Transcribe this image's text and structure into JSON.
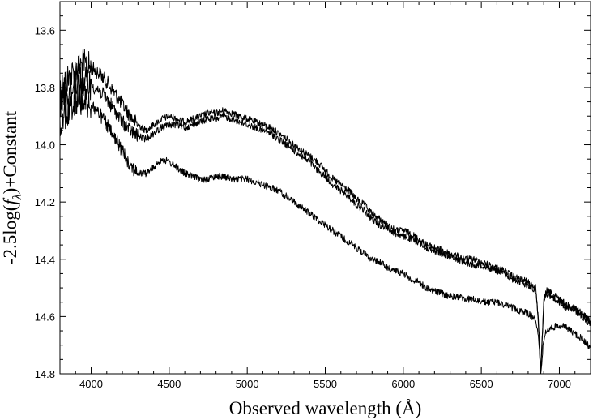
{
  "chart_data": {
    "type": "line",
    "title": "",
    "xlabel": "Observed wavelength (Å)",
    "ylabel": "-2.5log(fλ)+Constant",
    "ylabel_parts": {
      "prefix": "-2.5log(",
      "f": "f",
      "sub": "λ",
      "suffix": ")+Constant"
    },
    "xlim": [
      3800,
      7200
    ],
    "ylim": [
      14.8,
      13.5
    ],
    "y_inverted": true,
    "grid": false,
    "legend": "none",
    "line_color": "#000000",
    "x_ticks": [
      4000,
      4500,
      5000,
      5500,
      6000,
      6500,
      7000
    ],
    "x_tick_labels": [
      "4000",
      "4500",
      "5000",
      "5500",
      "6000",
      "6500",
      "7000"
    ],
    "y_ticks": [
      13.6,
      13.8,
      14.0,
      14.2,
      14.4,
      14.6,
      14.8
    ],
    "y_tick_labels": [
      "13.6",
      "13.8",
      "14.0",
      "14.2",
      "14.4",
      "14.6",
      "14.8"
    ],
    "series": [
      {
        "x": [
          3800,
          3850,
          3900,
          3950,
          4000,
          4050,
          4100,
          4150,
          4200,
          4250,
          4300,
          4350,
          4400,
          4450,
          4500,
          4550,
          4600,
          4650,
          4700,
          4750,
          4800,
          4850,
          4900,
          4950,
          5000,
          5050,
          5100,
          5150,
          5200,
          5250,
          5300,
          5350,
          5400,
          5450,
          5500,
          5550,
          5600,
          5650,
          5700,
          5750,
          5800,
          5850,
          5900,
          5950,
          6000,
          6050,
          6100,
          6150,
          6200,
          6250,
          6300,
          6350,
          6400,
          6450,
          6500,
          6550,
          6600,
          6650,
          6700,
          6750,
          6800,
          6850,
          6870,
          6880,
          6890,
          6900,
          6910,
          6920,
          6950,
          7000,
          7050,
          7100,
          7150,
          7200
        ],
        "y": [
          13.8,
          13.77,
          13.74,
          13.72,
          13.73,
          13.75,
          13.78,
          13.82,
          13.86,
          13.9,
          13.93,
          13.95,
          13.93,
          13.91,
          13.9,
          13.91,
          13.92,
          13.91,
          13.9,
          13.89,
          13.89,
          13.88,
          13.89,
          13.9,
          13.91,
          13.92,
          13.93,
          13.94,
          13.96,
          13.98,
          14.0,
          14.02,
          14.04,
          14.06,
          14.09,
          14.12,
          14.14,
          14.16,
          14.19,
          14.21,
          14.24,
          14.26,
          14.28,
          14.3,
          14.3,
          14.31,
          14.33,
          14.35,
          14.36,
          14.37,
          14.38,
          14.39,
          14.4,
          14.4,
          14.41,
          14.42,
          14.43,
          14.44,
          14.46,
          14.47,
          14.48,
          14.5,
          14.65,
          14.8,
          14.68,
          14.55,
          14.52,
          14.51,
          14.52,
          14.54,
          14.56,
          14.57,
          14.59,
          14.62
        ]
      },
      {
        "x": [
          3800,
          3850,
          3900,
          3950,
          4000,
          4050,
          4100,
          4150,
          4200,
          4250,
          4300,
          4350,
          4400,
          4450,
          4500,
          4550,
          4600,
          4650,
          4700,
          4750,
          4800,
          4850,
          4900,
          4950,
          5000,
          5050,
          5100,
          5150,
          5200,
          5250,
          5300,
          5350,
          5400,
          5450,
          5500,
          5550,
          5600,
          5650,
          5700,
          5750,
          5800,
          5850,
          5900,
          5950,
          6000,
          6050,
          6100,
          6150,
          6200,
          6250,
          6300,
          6350,
          6400,
          6450,
          6500,
          6550,
          6600,
          6650,
          6700,
          6750,
          6800,
          6850,
          6870,
          6880,
          6890,
          6900,
          6910,
          6920,
          6950,
          7000,
          7050,
          7100,
          7150,
          7200
        ],
        "y": [
          13.85,
          13.82,
          13.79,
          13.78,
          13.79,
          13.81,
          13.84,
          13.88,
          13.92,
          13.95,
          13.97,
          13.98,
          13.96,
          13.94,
          13.93,
          13.93,
          13.94,
          13.93,
          13.92,
          13.91,
          13.91,
          13.9,
          13.91,
          13.92,
          13.93,
          13.94,
          13.95,
          13.96,
          13.98,
          14.0,
          14.02,
          14.04,
          14.06,
          14.09,
          14.11,
          14.14,
          14.16,
          14.18,
          14.21,
          14.23,
          14.26,
          14.28,
          14.29,
          14.31,
          14.32,
          14.33,
          14.34,
          14.36,
          14.37,
          14.38,
          14.39,
          14.4,
          14.41,
          14.42,
          14.42,
          14.43,
          14.44,
          14.45,
          14.47,
          14.48,
          14.49,
          14.51,
          14.66,
          14.81,
          14.69,
          14.56,
          14.53,
          14.52,
          14.53,
          14.55,
          14.57,
          14.58,
          14.6,
          14.63
        ]
      },
      {
        "x": [
          3800,
          3850,
          3900,
          3950,
          4000,
          4050,
          4100,
          4150,
          4200,
          4250,
          4300,
          4350,
          4400,
          4450,
          4500,
          4550,
          4600,
          4650,
          4700,
          4750,
          4800,
          4850,
          4900,
          4950,
          5000,
          5050,
          5100,
          5150,
          5200,
          5250,
          5300,
          5350,
          5400,
          5450,
          5500,
          5550,
          5600,
          5650,
          5700,
          5750,
          5800,
          5850,
          5900,
          5950,
          6000,
          6050,
          6100,
          6150,
          6200,
          6250,
          6300,
          6350,
          6400,
          6450,
          6500,
          6550,
          6600,
          6650,
          6700,
          6750,
          6800,
          6850,
          6870,
          6880,
          6890,
          6900,
          6910,
          6920,
          6950,
          7000,
          7050,
          7100,
          7150,
          7200
        ],
        "y": [
          13.92,
          13.88,
          13.84,
          13.84,
          13.86,
          13.89,
          13.93,
          13.98,
          14.02,
          14.07,
          14.1,
          14.1,
          14.08,
          14.05,
          14.06,
          14.08,
          14.1,
          14.11,
          14.12,
          14.12,
          14.11,
          14.11,
          14.12,
          14.12,
          14.12,
          14.13,
          14.14,
          14.15,
          14.16,
          14.18,
          14.2,
          14.22,
          14.24,
          14.26,
          14.28,
          14.3,
          14.32,
          14.34,
          14.36,
          14.38,
          14.4,
          14.41,
          14.43,
          14.44,
          14.45,
          14.47,
          14.48,
          14.5,
          14.51,
          14.52,
          14.53,
          14.53,
          14.54,
          14.54,
          14.55,
          14.55,
          14.55,
          14.56,
          14.57,
          14.58,
          14.59,
          14.61,
          14.7,
          14.8,
          14.74,
          14.68,
          14.66,
          14.65,
          14.64,
          14.63,
          14.64,
          14.66,
          14.68,
          14.71
        ]
      }
    ]
  }
}
